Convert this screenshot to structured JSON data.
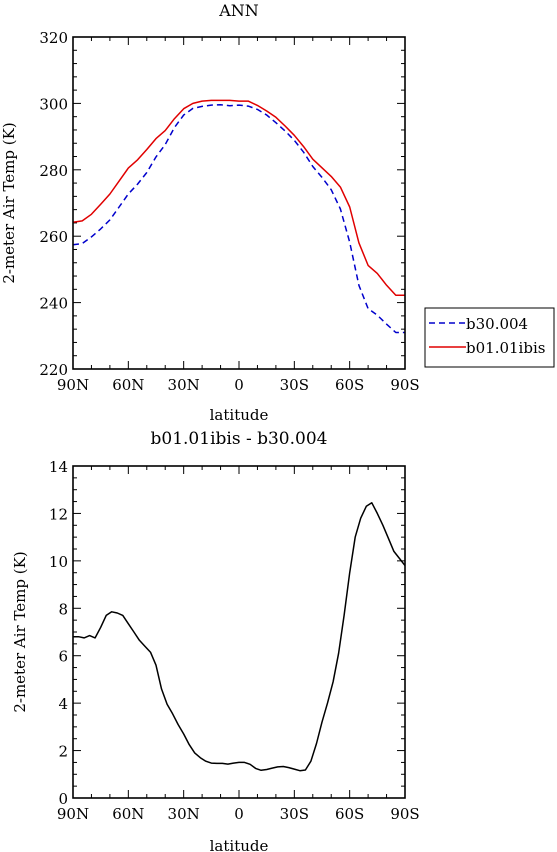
{
  "chart_data": [
    {
      "type": "line",
      "title": "ANN",
      "xlabel": "latitude",
      "ylabel": "2-meter Air Temp (K)",
      "xlim": [
        90,
        -90
      ],
      "ylim": [
        220,
        320
      ],
      "x_ticks": [
        "90N",
        "60N",
        "30N",
        "0",
        "30S",
        "60S",
        "90S"
      ],
      "y_ticks": [
        "220",
        "240",
        "260",
        "280",
        "300",
        "320"
      ],
      "legend": "outside-right",
      "series": [
        {
          "name": "b30.004",
          "color": "#0000cc",
          "style": "dashed",
          "x": [
            90,
            85,
            80,
            75,
            70,
            65,
            60,
            55,
            50,
            45,
            40,
            35,
            30,
            25,
            20,
            15,
            10,
            5,
            0,
            -5,
            -10,
            -15,
            -20,
            -25,
            -30,
            -35,
            -40,
            -45,
            -50,
            -55,
            -60,
            -65,
            -70,
            -75,
            -80,
            -85,
            -90
          ],
          "values": [
            257.4,
            257.8,
            259.8,
            262.2,
            264.9,
            268.8,
            272.7,
            275.7,
            279.2,
            283.9,
            287.6,
            292.7,
            296.5,
            298.5,
            299.1,
            299.5,
            299.6,
            299.3,
            299.5,
            299.2,
            298.2,
            296.5,
            294.2,
            291.7,
            288.9,
            285.3,
            281.0,
            277.7,
            274.0,
            268.2,
            258.2,
            245.2,
            238.2,
            236.2,
            233.5,
            231.0,
            231.0
          ]
        },
        {
          "name": "b01.01ibis",
          "color": "#e00000",
          "style": "solid",
          "x": [
            90,
            85,
            80,
            75,
            70,
            65,
            60,
            55,
            50,
            45,
            40,
            35,
            30,
            25,
            20,
            15,
            10,
            5,
            0,
            -5,
            -10,
            -15,
            -20,
            -25,
            -30,
            -35,
            -40,
            -45,
            -50,
            -55,
            -60,
            -65,
            -70,
            -75,
            -80,
            -85,
            -90
          ],
          "values": [
            264.2,
            264.6,
            266.6,
            269.6,
            272.7,
            276.6,
            280.5,
            283.0,
            286.1,
            289.4,
            291.8,
            295.4,
            298.4,
            300.0,
            300.7,
            300.9,
            300.9,
            300.9,
            300.7,
            300.7,
            299.4,
            297.7,
            295.8,
            293.2,
            290.4,
            287.0,
            283.2,
            280.6,
            278.0,
            274.8,
            268.8,
            258.0,
            251.2,
            248.8,
            245.2,
            242.2,
            242.2
          ]
        }
      ]
    },
    {
      "type": "line",
      "title": "b01.01ibis - b30.004",
      "xlabel": "latitude",
      "ylabel": "2-meter Air Temp (K)",
      "xlim": [
        90,
        -90
      ],
      "ylim": [
        0,
        14
      ],
      "x_ticks": [
        "90N",
        "60N",
        "30N",
        "0",
        "30S",
        "60S",
        "90S"
      ],
      "y_ticks": [
        "0",
        "2",
        "4",
        "6",
        "8",
        "10",
        "12",
        "14"
      ],
      "series": [
        {
          "color": "#000000",
          "style": "solid",
          "x": [
            90,
            87,
            84,
            81,
            78,
            75,
            72,
            69,
            66,
            63,
            60,
            57,
            54,
            51,
            48,
            45,
            42,
            39,
            36,
            33,
            30,
            27,
            24,
            21,
            18,
            15,
            12,
            9,
            6,
            3,
            0,
            -3,
            -6,
            -9,
            -12,
            -15,
            -18,
            -21,
            -24,
            -27,
            -30,
            -33,
            -36,
            -39,
            -42,
            -45,
            -48,
            -51,
            -54,
            -57,
            -60,
            -63,
            -66,
            -69,
            -72,
            -75,
            -78,
            -81,
            -84,
            -87,
            -90
          ],
          "values": [
            6.8,
            6.8,
            6.75,
            6.85,
            6.75,
            7.2,
            7.7,
            7.85,
            7.8,
            7.7,
            7.35,
            7.0,
            6.65,
            6.4,
            6.15,
            5.6,
            4.6,
            3.95,
            3.55,
            3.1,
            2.7,
            2.25,
            1.9,
            1.7,
            1.55,
            1.47,
            1.46,
            1.46,
            1.43,
            1.47,
            1.5,
            1.5,
            1.42,
            1.25,
            1.17,
            1.2,
            1.26,
            1.31,
            1.33,
            1.28,
            1.22,
            1.15,
            1.18,
            1.55,
            2.3,
            3.2,
            4.0,
            4.9,
            6.1,
            7.7,
            9.5,
            11.0,
            11.8,
            12.3,
            12.45,
            12.0,
            11.5,
            10.95,
            10.4,
            10.1,
            9.8
          ]
        }
      ]
    }
  ]
}
